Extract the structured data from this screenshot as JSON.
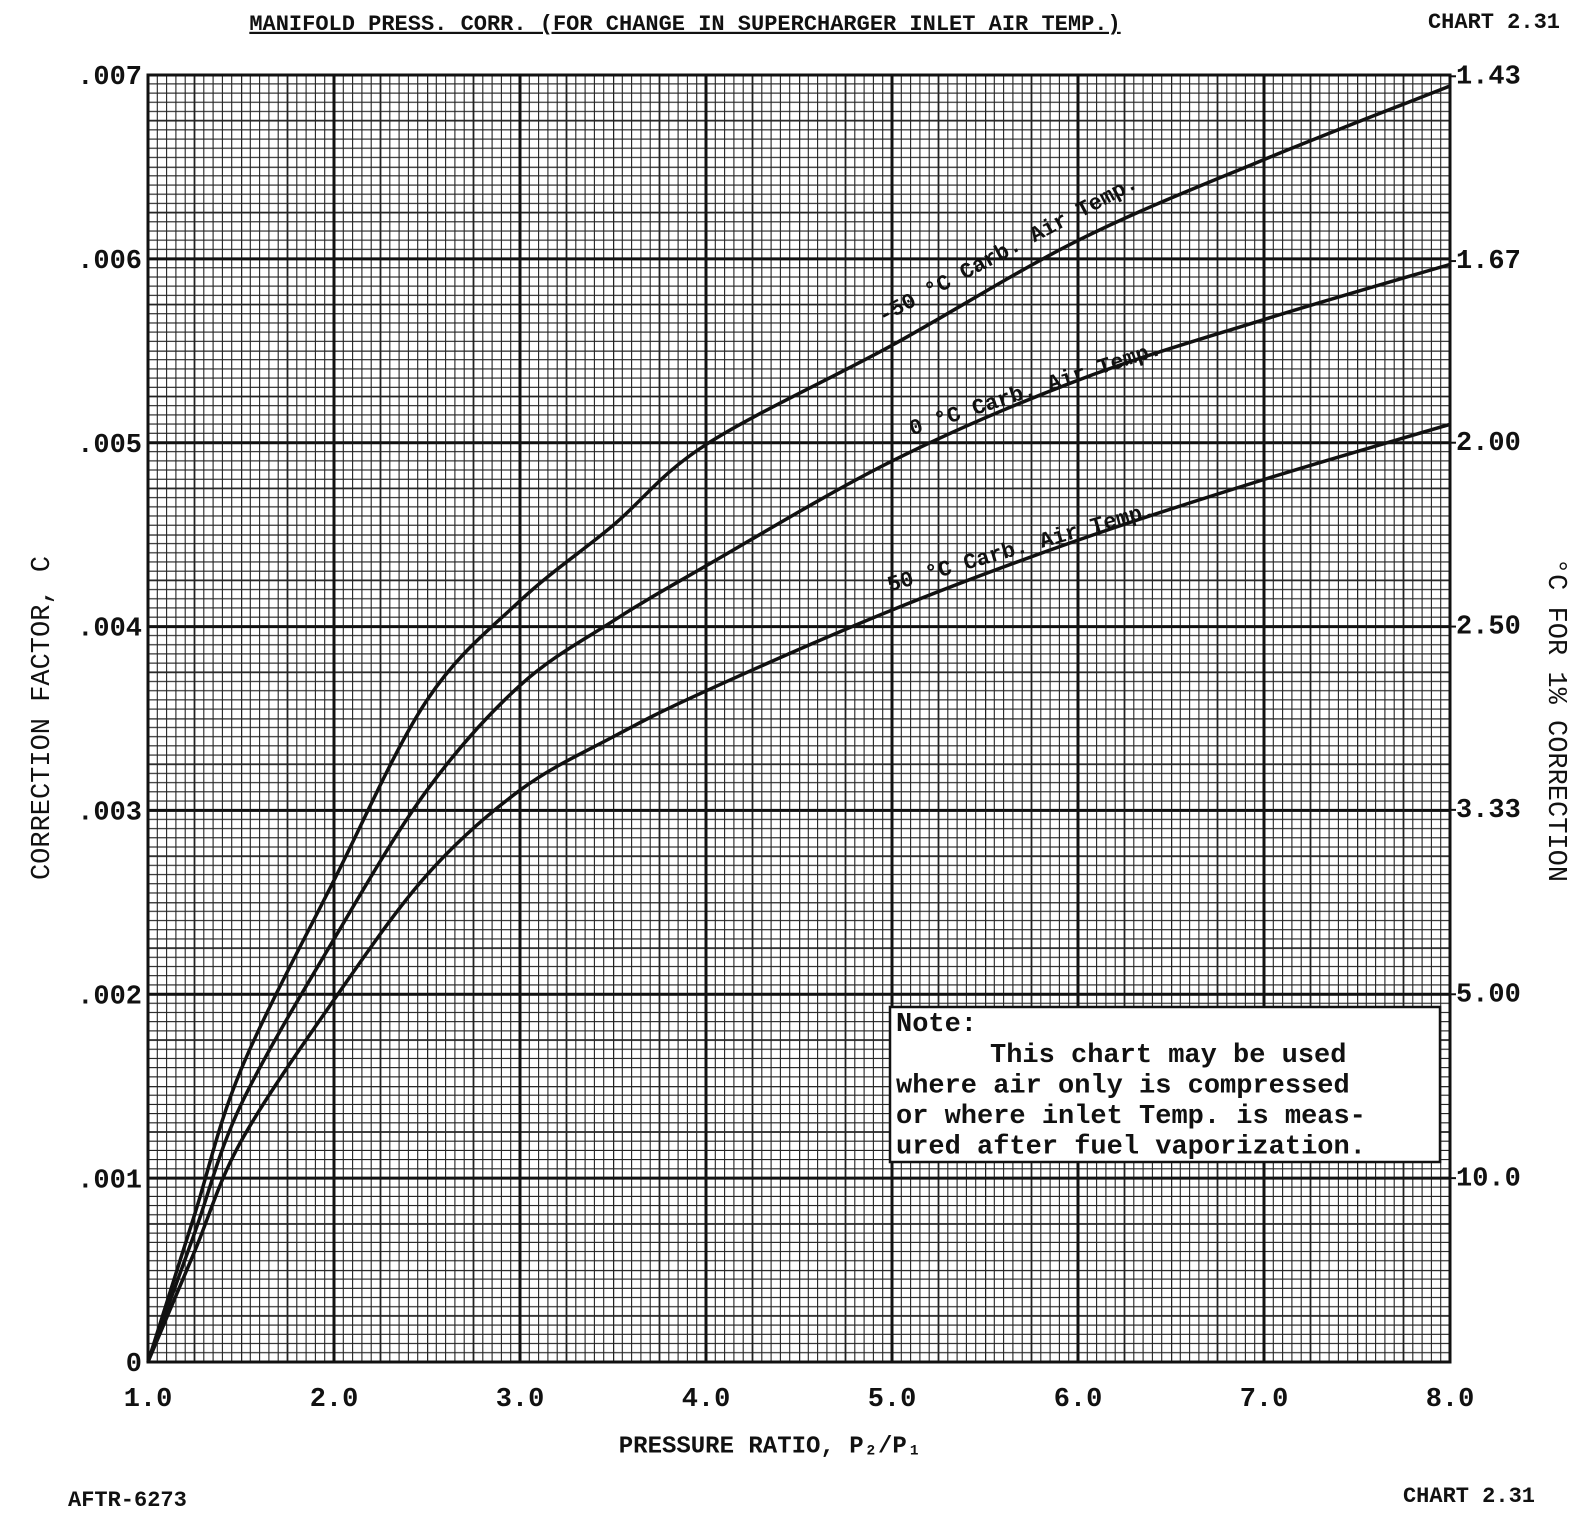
{
  "chart_data": {
    "type": "line",
    "title": "MANIFOLD PRESS. CORR. (FOR CHANGE IN SUPERCHARGER INLET AIR TEMP.)",
    "chart_id": "CHART 2.31",
    "chart_id_bottom": "CHART 2.31",
    "report_id": "AFTR-6273",
    "x_label": "PRESSURE RATIO,  P₂/P₁",
    "y_label": "CORRECTION FACTOR, C",
    "y2_label": "°C FOR 1% CORRECTION",
    "x": [
      1.0,
      1.25,
      1.5,
      2.0,
      2.5,
      3.0,
      3.5,
      4.0,
      5.0,
      6.0,
      7.0,
      8.0
    ],
    "series": [
      {
        "name": "-50 °C Carb. Air Temp.",
        "color": "#111111",
        "values": [
          0,
          0.0008,
          0.00159,
          0.00262,
          0.0036,
          0.00414,
          0.00455,
          0.00499,
          0.00553,
          0.0061,
          0.00654,
          0.00694
        ]
      },
      {
        "name": "0 °C Carb. Air Temp.",
        "color": "#111111",
        "values": [
          0,
          0.0007,
          0.0014,
          0.0023,
          0.00311,
          0.00368,
          0.00403,
          0.00433,
          0.0049,
          0.00534,
          0.00567,
          0.00597
        ]
      },
      {
        "name": "50 °C Carb. Air Temp.",
        "color": "#111111",
        "values": [
          0,
          0.0006,
          0.0012,
          0.00197,
          0.00265,
          0.00311,
          0.0034,
          0.00365,
          0.00409,
          0.00447,
          0.0048,
          0.0051
        ]
      }
    ],
    "xlim": [
      1.0,
      8.0
    ],
    "ylim": [
      0,
      0.007
    ],
    "xticks": [
      {
        "value": 1,
        "label": "1.0"
      },
      {
        "value": 2,
        "label": "2.0"
      },
      {
        "value": 3,
        "label": "3.0"
      },
      {
        "value": 4,
        "label": "4.0"
      },
      {
        "value": 5,
        "label": "5.0"
      },
      {
        "value": 6,
        "label": "6.0"
      },
      {
        "value": 7,
        "label": "7.0"
      },
      {
        "value": 8,
        "label": "8.0"
      }
    ],
    "yticks": [
      0,
      {
        "value": 0.001,
        "label": ".001"
      },
      {
        "value": 0.002,
        "label": ".002"
      },
      {
        "value": 0.003,
        "label": ".003"
      },
      {
        "value": 0.004,
        "label": ".004"
      },
      {
        "value": 0.005,
        "label": ".005"
      },
      {
        "value": 0.006,
        "label": ".006"
      },
      {
        "value": 0.007,
        "label": ".007"
      }
    ],
    "y2scale": "reciprocal",
    "y2ticks": [
      1.43,
      1.67,
      {
        "value": 2,
        "label": "2.00"
      },
      {
        "value": 2.5,
        "label": "2.50"
      },
      3.33,
      {
        "value": 5,
        "label": "5.00"
      },
      {
        "value": 10,
        "label": "10.0"
      }
    ],
    "grid": true,
    "note": {
      "heading": "Note:",
      "lines": [
        "This chart may be used",
        "where air only is compressed",
        "or where inlet Temp. is meas-",
        "ured after fuel vaporization."
      ]
    }
  }
}
